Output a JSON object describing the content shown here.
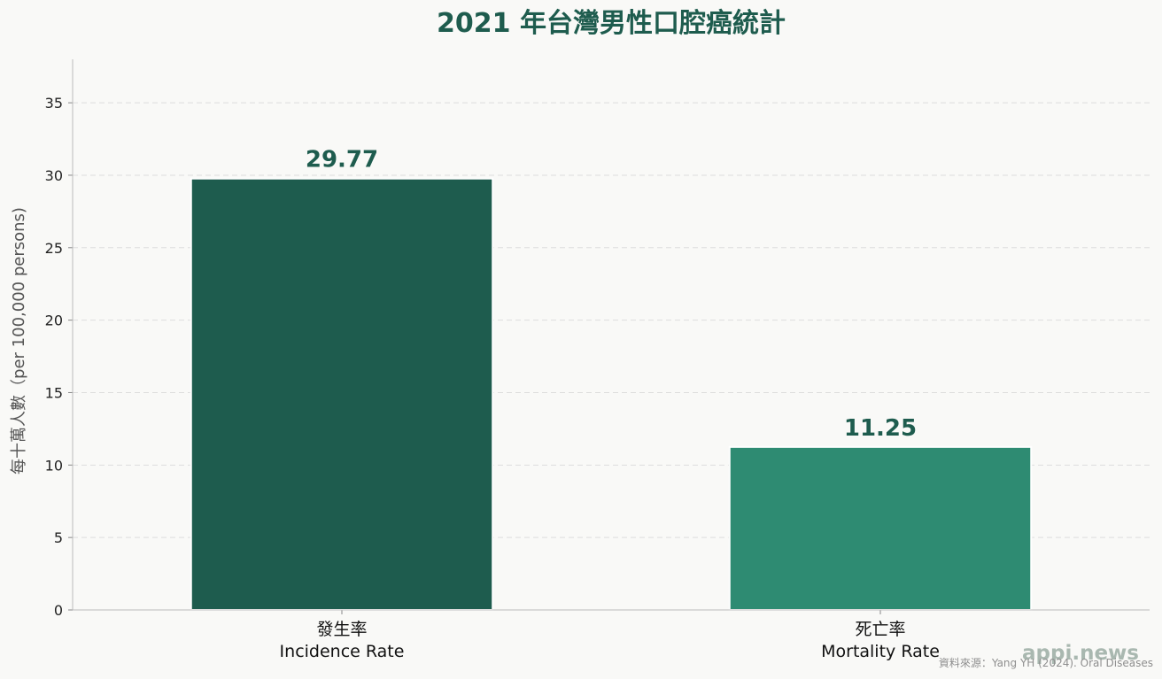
{
  "chart_data": {
    "type": "bar",
    "title": "2021 年台灣男性口腔癌統計",
    "ylabel": "每十萬人數（per 100,000 persons)",
    "xlabel": "",
    "categories": [
      [
        "發生率",
        "Incidence Rate"
      ],
      [
        "死亡率",
        "Mortality Rate"
      ]
    ],
    "values": [
      29.77,
      11.25
    ],
    "value_labels": [
      "29.77",
      "11.25"
    ],
    "colors": [
      "#1e5c4e",
      "#2e8b72"
    ],
    "ylim": [
      0,
      38
    ],
    "yticks": [
      0,
      5,
      10,
      15,
      20,
      25,
      30,
      35
    ],
    "grid": true
  },
  "watermark": "appi.news",
  "source": "資料來源：Yang YH (2024). Oral Diseases"
}
